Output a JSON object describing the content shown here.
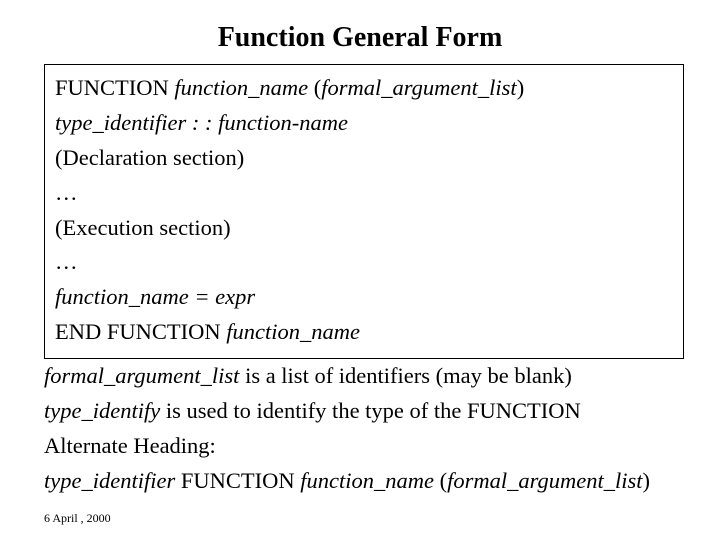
{
  "title": "Function General Form",
  "box": {
    "l1_a": "FUNCTION ",
    "l1_b": "function_name",
    "l1_c": " (",
    "l1_d": "formal_argument_list",
    "l1_e": ")",
    "l2_a": "type_identifier : : function-name",
    "l3": "(Declaration section)",
    "l4": "…",
    "l5": "(Execution section)",
    "l6": "…",
    "l7": "function_name = expr",
    "l8_a": "END FUNCTION ",
    "l8_b": "function_name"
  },
  "outer": {
    "l1_a": "formal_argument_list",
    "l1_b": " is a list of identifiers (may be blank)",
    "l2_a": "type_identify",
    "l2_b": " is used to identify the type of the FUNCTION",
    "l3": "Alternate Heading:",
    "l4_a": "type_identifier",
    "l4_b": " FUNCTION ",
    "l4_c": "function_name",
    "l4_d": " (",
    "l4_e": "formal_argument_list",
    "l4_f": ")"
  },
  "footer": "6 April , 2000",
  "colors": {
    "background": "#ffffff",
    "text": "#000000",
    "border": "#000000"
  },
  "fonts": {
    "title_size": 28,
    "body_size": 22.5,
    "footer_size": 12,
    "family": "Times New Roman"
  }
}
